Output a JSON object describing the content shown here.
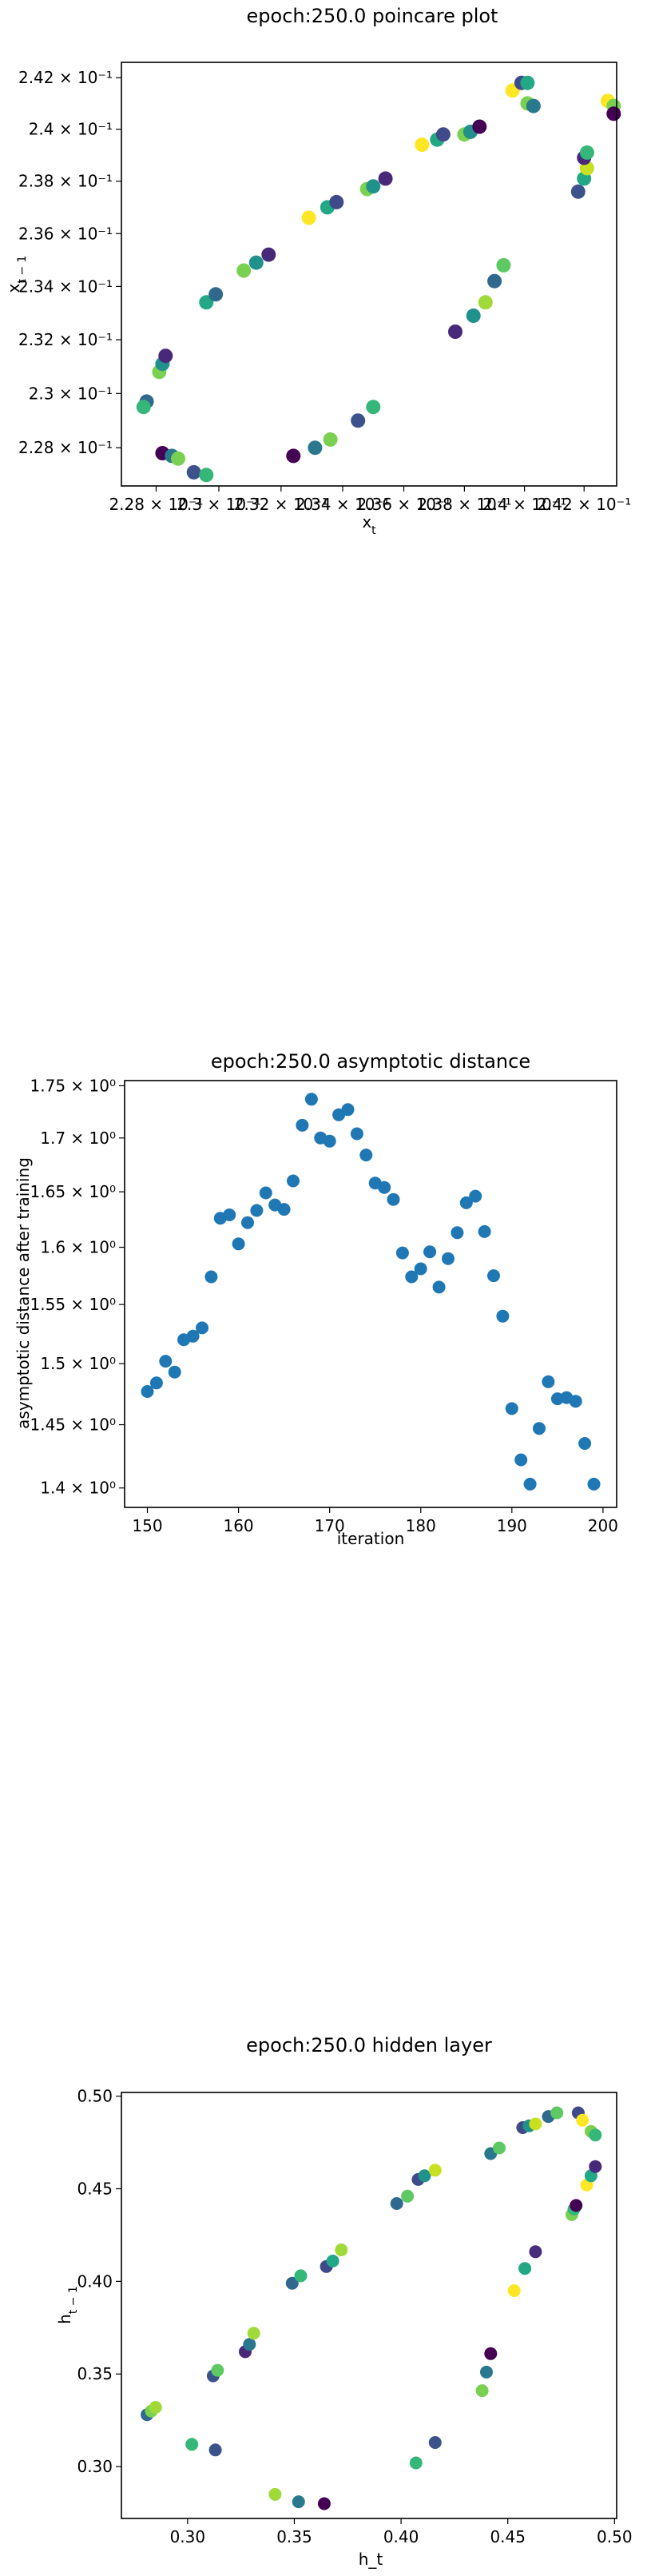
{
  "chart_data": [
    {
      "type": "scatter",
      "title": "epoch:250.0 poincare plot",
      "xlabel": "x_t",
      "ylabel": "x_{t-1}",
      "xlim": [
        0.2269,
        0.2431
      ],
      "ylim": [
        0.2266,
        0.2426
      ],
      "xscale": "log",
      "yscale": "log",
      "grid": false,
      "xticks": [
        {
          "v": 0.228,
          "label": "2.28 × 10⁻¹"
        },
        {
          "v": 0.23,
          "label": "2.3 × 10⁻¹"
        },
        {
          "v": 0.232,
          "label": "2.32 × 10⁻¹"
        },
        {
          "v": 0.234,
          "label": "2.34 × 10⁻¹"
        },
        {
          "v": 0.236,
          "label": "2.36 × 10⁻¹"
        },
        {
          "v": 0.238,
          "label": "2.38 × 10⁻¹"
        },
        {
          "v": 0.24,
          "label": "2.4 × 10⁻¹"
        },
        {
          "v": 0.242,
          "label": "2.42 × 10⁻¹"
        }
      ],
      "yticks": [
        {
          "v": 0.228,
          "label": "2.28 × 10⁻¹"
        },
        {
          "v": 0.23,
          "label": "2.3 × 10⁻¹"
        },
        {
          "v": 0.232,
          "label": "2.32 × 10⁻¹"
        },
        {
          "v": 0.234,
          "label": "2.34 × 10⁻¹"
        },
        {
          "v": 0.236,
          "label": "2.36 × 10⁻¹"
        },
        {
          "v": 0.238,
          "label": "2.38 × 10⁻¹"
        },
        {
          "v": 0.24,
          "label": "2.4 × 10⁻¹"
        },
        {
          "v": 0.242,
          "label": "2.42 × 10⁻¹"
        }
      ],
      "points": [
        {
          "x": 0.2277,
          "y": 0.2297,
          "c": "#31688e"
        },
        {
          "x": 0.2276,
          "y": 0.2295,
          "c": "#35b779"
        },
        {
          "x": 0.2281,
          "y": 0.2308,
          "c": "#7ad151"
        },
        {
          "x": 0.2282,
          "y": 0.2311,
          "c": "#21918c"
        },
        {
          "x": 0.2283,
          "y": 0.2314,
          "c": "#482878"
        },
        {
          "x": 0.2282,
          "y": 0.2278,
          "c": "#440154"
        },
        {
          "x": 0.2285,
          "y": 0.2277,
          "c": "#2a788e"
        },
        {
          "x": 0.2287,
          "y": 0.2276,
          "c": "#7ad151"
        },
        {
          "x": 0.2292,
          "y": 0.2271,
          "c": "#3b528b"
        },
        {
          "x": 0.2296,
          "y": 0.227,
          "c": "#35b779"
        },
        {
          "x": 0.2296,
          "y": 0.2334,
          "c": "#22a884"
        },
        {
          "x": 0.2299,
          "y": 0.2337,
          "c": "#31688e"
        },
        {
          "x": 0.2308,
          "y": 0.2346,
          "c": "#7ad151"
        },
        {
          "x": 0.2312,
          "y": 0.2349,
          "c": "#21918c"
        },
        {
          "x": 0.2316,
          "y": 0.2352,
          "c": "#482878"
        },
        {
          "x": 0.2324,
          "y": 0.2277,
          "c": "#440154"
        },
        {
          "x": 0.2331,
          "y": 0.228,
          "c": "#2a788e"
        },
        {
          "x": 0.2336,
          "y": 0.2283,
          "c": "#7ad151"
        },
        {
          "x": 0.2345,
          "y": 0.229,
          "c": "#3b528b"
        },
        {
          "x": 0.235,
          "y": 0.2295,
          "c": "#35b779"
        },
        {
          "x": 0.2329,
          "y": 0.2366,
          "c": "#fde725"
        },
        {
          "x": 0.2335,
          "y": 0.237,
          "c": "#22a884"
        },
        {
          "x": 0.2338,
          "y": 0.2372,
          "c": "#3e4a89"
        },
        {
          "x": 0.2348,
          "y": 0.2377,
          "c": "#7ad151"
        },
        {
          "x": 0.235,
          "y": 0.2378,
          "c": "#21918c"
        },
        {
          "x": 0.2354,
          "y": 0.2381,
          "c": "#482878"
        },
        {
          "x": 0.2366,
          "y": 0.2394,
          "c": "#fde725"
        },
        {
          "x": 0.2371,
          "y": 0.2396,
          "c": "#22a884"
        },
        {
          "x": 0.2373,
          "y": 0.2398,
          "c": "#3e4a89"
        },
        {
          "x": 0.238,
          "y": 0.2398,
          "c": "#7ad151"
        },
        {
          "x": 0.2382,
          "y": 0.2399,
          "c": "#21918c"
        },
        {
          "x": 0.2385,
          "y": 0.2401,
          "c": "#440154"
        },
        {
          "x": 0.2377,
          "y": 0.2323,
          "c": "#482878"
        },
        {
          "x": 0.2383,
          "y": 0.2329,
          "c": "#21918c"
        },
        {
          "x": 0.2387,
          "y": 0.2334,
          "c": "#a0da39"
        },
        {
          "x": 0.239,
          "y": 0.2342,
          "c": "#31688e"
        },
        {
          "x": 0.2393,
          "y": 0.2348,
          "c": "#5ec962"
        },
        {
          "x": 0.2396,
          "y": 0.2415,
          "c": "#fde725"
        },
        {
          "x": 0.2399,
          "y": 0.2418,
          "c": "#3e4a89"
        },
        {
          "x": 0.2401,
          "y": 0.2418,
          "c": "#22a884"
        },
        {
          "x": 0.2401,
          "y": 0.241,
          "c": "#7ad151"
        },
        {
          "x": 0.2403,
          "y": 0.2409,
          "c": "#2a788e"
        },
        {
          "x": 0.2418,
          "y": 0.2376,
          "c": "#3b528b"
        },
        {
          "x": 0.242,
          "y": 0.2381,
          "c": "#22a884"
        },
        {
          "x": 0.2421,
          "y": 0.2385,
          "c": "#c8e020"
        },
        {
          "x": 0.242,
          "y": 0.2389,
          "c": "#482878"
        },
        {
          "x": 0.2421,
          "y": 0.2391,
          "c": "#35b779"
        },
        {
          "x": 0.2428,
          "y": 0.2411,
          "c": "#fde725"
        },
        {
          "x": 0.243,
          "y": 0.2409,
          "c": "#7ad151"
        },
        {
          "x": 0.243,
          "y": 0.2406,
          "c": "#440154"
        }
      ]
    },
    {
      "type": "scatter",
      "title": "epoch:250.0 asymptotic distance",
      "xlabel": "iteration",
      "ylabel": "asymptotic distance after training",
      "xlim": [
        147.5,
        201.5
      ],
      "ylim": [
        1.385,
        1.755
      ],
      "yscale": "log",
      "grid": false,
      "color": "#1f77b4",
      "xticks": [
        {
          "v": 150,
          "label": "150"
        },
        {
          "v": 160,
          "label": "160"
        },
        {
          "v": 170,
          "label": "170"
        },
        {
          "v": 180,
          "label": "180"
        },
        {
          "v": 190,
          "label": "190"
        },
        {
          "v": 200,
          "label": "200"
        }
      ],
      "yticks": [
        {
          "v": 1.4,
          "label": "1.4 × 10⁰"
        },
        {
          "v": 1.45,
          "label": "1.45 × 10⁰"
        },
        {
          "v": 1.5,
          "label": "1.5 × 10⁰"
        },
        {
          "v": 1.55,
          "label": "1.55 × 10⁰"
        },
        {
          "v": 1.6,
          "label": "1.6 × 10⁰"
        },
        {
          "v": 1.65,
          "label": "1.65 × 10⁰"
        },
        {
          "v": 1.7,
          "label": "1.7 × 10⁰"
        },
        {
          "v": 1.75,
          "label": "1.75 × 10⁰"
        }
      ],
      "x": [
        150,
        151,
        152,
        153,
        154,
        155,
        156,
        157,
        158,
        159,
        160,
        161,
        162,
        163,
        164,
        165,
        166,
        167,
        168,
        169,
        170,
        171,
        172,
        173,
        174,
        175,
        176,
        177,
        178,
        179,
        180,
        181,
        182,
        183,
        184,
        185,
        186,
        187,
        188,
        189,
        190,
        191,
        192,
        193,
        194,
        195,
        196,
        197,
        198,
        199
      ],
      "y": [
        1.477,
        1.484,
        1.502,
        1.493,
        1.52,
        1.523,
        1.53,
        1.574,
        1.626,
        1.629,
        1.603,
        1.622,
        1.633,
        1.649,
        1.638,
        1.634,
        1.66,
        1.712,
        1.737,
        1.7,
        1.697,
        1.722,
        1.727,
        1.704,
        1.684,
        1.658,
        1.654,
        1.643,
        1.595,
        1.574,
        1.581,
        1.596,
        1.565,
        1.59,
        1.613,
        1.64,
        1.646,
        1.614,
        1.575,
        1.54,
        1.463,
        1.422,
        1.403,
        1.447,
        1.485,
        1.471,
        1.472,
        1.469,
        1.435,
        1.403
      ]
    },
    {
      "type": "scatter",
      "title": "epoch:250.0 hidden layer",
      "xlabel": "h_t",
      "ylabel": "h_{t-1}",
      "xlim": [
        0.269,
        0.501
      ],
      "ylim": [
        0.272,
        0.502
      ],
      "grid": false,
      "xticks": [
        {
          "v": 0.3,
          "label": "0.30"
        },
        {
          "v": 0.35,
          "label": "0.35"
        },
        {
          "v": 0.4,
          "label": "0.40"
        },
        {
          "v": 0.45,
          "label": "0.45"
        },
        {
          "v": 0.5,
          "label": "0.50"
        }
      ],
      "yticks": [
        {
          "v": 0.3,
          "label": "0.30"
        },
        {
          "v": 0.35,
          "label": "0.35"
        },
        {
          "v": 0.4,
          "label": "0.40"
        },
        {
          "v": 0.45,
          "label": "0.45"
        },
        {
          "v": 0.5,
          "label": "0.50"
        }
      ],
      "points": [
        {
          "x": 0.281,
          "y": 0.328,
          "c": "#31688e"
        },
        {
          "x": 0.283,
          "y": 0.33,
          "c": "#7ad151"
        },
        {
          "x": 0.285,
          "y": 0.332,
          "c": "#a0da39"
        },
        {
          "x": 0.302,
          "y": 0.312,
          "c": "#35b779"
        },
        {
          "x": 0.312,
          "y": 0.349,
          "c": "#3b528b"
        },
        {
          "x": 0.314,
          "y": 0.352,
          "c": "#5ec962"
        },
        {
          "x": 0.313,
          "y": 0.309,
          "c": "#3b528b"
        },
        {
          "x": 0.327,
          "y": 0.362,
          "c": "#482878"
        },
        {
          "x": 0.329,
          "y": 0.366,
          "c": "#2a788e"
        },
        {
          "x": 0.331,
          "y": 0.372,
          "c": "#a0da39"
        },
        {
          "x": 0.341,
          "y": 0.285,
          "c": "#a0da39"
        },
        {
          "x": 0.352,
          "y": 0.281,
          "c": "#2a788e"
        },
        {
          "x": 0.364,
          "y": 0.28,
          "c": "#440154"
        },
        {
          "x": 0.349,
          "y": 0.399,
          "c": "#31688e"
        },
        {
          "x": 0.353,
          "y": 0.403,
          "c": "#35b779"
        },
        {
          "x": 0.365,
          "y": 0.408,
          "c": "#3e4a89"
        },
        {
          "x": 0.368,
          "y": 0.411,
          "c": "#22a884"
        },
        {
          "x": 0.372,
          "y": 0.417,
          "c": "#a0da39"
        },
        {
          "x": 0.398,
          "y": 0.442,
          "c": "#31688e"
        },
        {
          "x": 0.403,
          "y": 0.446,
          "c": "#5ec962"
        },
        {
          "x": 0.408,
          "y": 0.455,
          "c": "#3e4a89"
        },
        {
          "x": 0.411,
          "y": 0.457,
          "c": "#21918c"
        },
        {
          "x": 0.416,
          "y": 0.46,
          "c": "#c8e020"
        },
        {
          "x": 0.407,
          "y": 0.302,
          "c": "#35b779"
        },
        {
          "x": 0.416,
          "y": 0.313,
          "c": "#3b528b"
        },
        {
          "x": 0.438,
          "y": 0.341,
          "c": "#7ad151"
        },
        {
          "x": 0.44,
          "y": 0.351,
          "c": "#2a788e"
        },
        {
          "x": 0.442,
          "y": 0.361,
          "c": "#440154"
        },
        {
          "x": 0.442,
          "y": 0.469,
          "c": "#2a788e"
        },
        {
          "x": 0.446,
          "y": 0.472,
          "c": "#5ec962"
        },
        {
          "x": 0.457,
          "y": 0.483,
          "c": "#3e4a89"
        },
        {
          "x": 0.46,
          "y": 0.484,
          "c": "#21918c"
        },
        {
          "x": 0.463,
          "y": 0.485,
          "c": "#c8e020"
        },
        {
          "x": 0.453,
          "y": 0.395,
          "c": "#fde725"
        },
        {
          "x": 0.458,
          "y": 0.407,
          "c": "#22a884"
        },
        {
          "x": 0.463,
          "y": 0.416,
          "c": "#472d7b"
        },
        {
          "x": 0.469,
          "y": 0.489,
          "c": "#31688e"
        },
        {
          "x": 0.473,
          "y": 0.491,
          "c": "#5ec962"
        },
        {
          "x": 0.48,
          "y": 0.436,
          "c": "#7ad151"
        },
        {
          "x": 0.481,
          "y": 0.439,
          "c": "#35b779"
        },
        {
          "x": 0.482,
          "y": 0.441,
          "c": "#440154"
        },
        {
          "x": 0.483,
          "y": 0.491,
          "c": "#3e4a89"
        },
        {
          "x": 0.485,
          "y": 0.487,
          "c": "#fde725"
        },
        {
          "x": 0.487,
          "y": 0.452,
          "c": "#fde725"
        },
        {
          "x": 0.489,
          "y": 0.457,
          "c": "#22a884"
        },
        {
          "x": 0.491,
          "y": 0.462,
          "c": "#482878"
        },
        {
          "x": 0.489,
          "y": 0.481,
          "c": "#7ad151"
        },
        {
          "x": 0.491,
          "y": 0.479,
          "c": "#35b779"
        }
      ]
    }
  ]
}
